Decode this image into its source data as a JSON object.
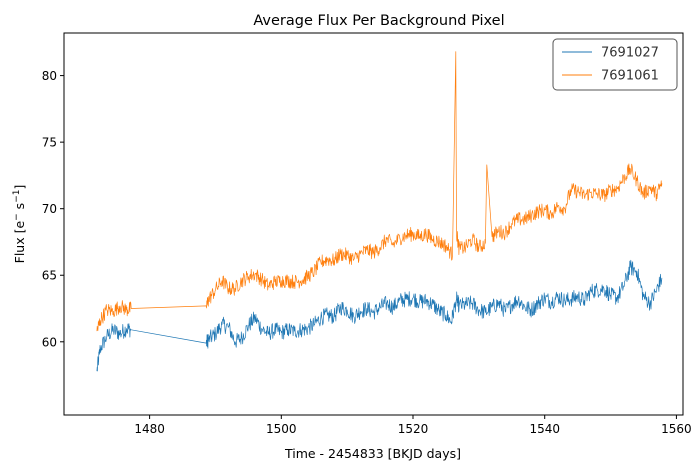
{
  "chart_data": {
    "type": "line",
    "title": "Average Flux Per Background Pixel",
    "xlabel": "Time - 2454833 [BKJD days]",
    "ylabel_main": "Flux [e",
    "ylabel_sup1": "−",
    "ylabel_mid": " s",
    "ylabel_sup2": "−1",
    "ylabel_end": "]",
    "xlim": [
      1467,
      1561
    ],
    "ylim": [
      54.5,
      83.2
    ],
    "xticks": [
      1480,
      1500,
      1520,
      1540,
      1560
    ],
    "yticks": [
      60,
      65,
      70,
      75,
      80
    ],
    "grid": false,
    "legend_position": "top-right",
    "series": [
      {
        "name": "7691027",
        "color": "#1f77b4",
        "noise": 0.6,
        "points": [
          [
            1472.0,
            57.8
          ],
          [
            1472.5,
            59.5
          ],
          [
            1473.5,
            60.4
          ],
          [
            1474.5,
            60.9
          ],
          [
            1475.5,
            60.6
          ],
          [
            1476.5,
            61.0
          ],
          [
            1477.2,
            60.9
          ],
          [
            1488.6,
            59.9
          ],
          [
            1489.0,
            60.2
          ],
          [
            1490.0,
            60.6
          ],
          [
            1491.0,
            61.3
          ],
          [
            1492.0,
            61.1
          ],
          [
            1493.0,
            60.0
          ],
          [
            1494.0,
            60.3
          ],
          [
            1495.0,
            61.2
          ],
          [
            1496.0,
            61.8
          ],
          [
            1497.0,
            61.0
          ],
          [
            1498.0,
            60.6
          ],
          [
            1499.0,
            60.9
          ],
          [
            1500.0,
            60.7
          ],
          [
            1501.0,
            60.9
          ],
          [
            1502.0,
            60.8
          ],
          [
            1503.0,
            60.9
          ],
          [
            1504.0,
            61.0
          ],
          [
            1505.0,
            61.3
          ],
          [
            1506.0,
            61.8
          ],
          [
            1507.0,
            62.0
          ],
          [
            1508.0,
            61.9
          ],
          [
            1509.0,
            62.6
          ],
          [
            1510.0,
            62.4
          ],
          [
            1511.0,
            61.9
          ],
          [
            1512.0,
            62.3
          ],
          [
            1513.0,
            62.5
          ],
          [
            1514.0,
            62.2
          ],
          [
            1515.0,
            62.6
          ],
          [
            1516.0,
            62.9
          ],
          [
            1517.0,
            62.6
          ],
          [
            1518.0,
            63.1
          ],
          [
            1519.0,
            63.2
          ],
          [
            1520.0,
            63.3
          ],
          [
            1521.0,
            63.0
          ],
          [
            1522.0,
            63.1
          ],
          [
            1523.0,
            62.8
          ],
          [
            1524.0,
            62.3
          ],
          [
            1525.0,
            62.0
          ],
          [
            1525.8,
            61.5
          ],
          [
            1526.6,
            63.2
          ],
          [
            1527.0,
            62.7
          ],
          [
            1528.0,
            62.8
          ],
          [
            1529.0,
            62.9
          ],
          [
            1530.0,
            62.4
          ],
          [
            1531.0,
            62.2
          ],
          [
            1532.0,
            62.6
          ],
          [
            1533.0,
            62.9
          ],
          [
            1534.0,
            62.3
          ],
          [
            1535.0,
            62.8
          ],
          [
            1536.0,
            63.2
          ],
          [
            1537.0,
            62.6
          ],
          [
            1538.0,
            62.4
          ],
          [
            1539.0,
            62.9
          ],
          [
            1540.0,
            63.3
          ],
          [
            1541.0,
            63.0
          ],
          [
            1542.0,
            63.4
          ],
          [
            1543.0,
            63.1
          ],
          [
            1544.0,
            63.2
          ],
          [
            1545.0,
            63.4
          ],
          [
            1546.0,
            63.1
          ],
          [
            1547.0,
            63.8
          ],
          [
            1548.0,
            63.9
          ],
          [
            1549.0,
            64.0
          ],
          [
            1550.0,
            63.5
          ],
          [
            1551.0,
            63.3
          ],
          [
            1552.0,
            64.2
          ],
          [
            1553.0,
            65.6
          ],
          [
            1554.0,
            65.3
          ],
          [
            1555.0,
            63.4
          ],
          [
            1556.0,
            62.9
          ],
          [
            1557.0,
            63.9
          ],
          [
            1557.8,
            64.8
          ]
        ]
      },
      {
        "name": "7691061",
        "color": "#ff7f0e",
        "noise": 0.55,
        "points": [
          [
            1472.0,
            60.8
          ],
          [
            1472.5,
            61.6
          ],
          [
            1473.5,
            62.4
          ],
          [
            1474.5,
            62.3
          ],
          [
            1475.5,
            62.7
          ],
          [
            1476.5,
            62.4
          ],
          [
            1477.2,
            62.5
          ],
          [
            1488.6,
            62.7
          ],
          [
            1489.0,
            63.2
          ],
          [
            1490.0,
            63.9
          ],
          [
            1491.0,
            64.6
          ],
          [
            1492.0,
            64.0
          ],
          [
            1493.0,
            64.0
          ],
          [
            1494.0,
            64.6
          ],
          [
            1495.0,
            64.9
          ],
          [
            1496.0,
            65.1
          ],
          [
            1497.0,
            64.7
          ],
          [
            1498.0,
            64.2
          ],
          [
            1499.0,
            64.5
          ],
          [
            1500.0,
            64.6
          ],
          [
            1501.0,
            64.6
          ],
          [
            1502.0,
            64.5
          ],
          [
            1503.0,
            64.6
          ],
          [
            1504.0,
            64.9
          ],
          [
            1505.0,
            65.3
          ],
          [
            1506.0,
            66.0
          ],
          [
            1507.0,
            66.2
          ],
          [
            1508.0,
            66.1
          ],
          [
            1509.0,
            66.6
          ],
          [
            1510.0,
            66.5
          ],
          [
            1511.0,
            66.2
          ],
          [
            1512.0,
            66.6
          ],
          [
            1513.0,
            66.9
          ],
          [
            1514.0,
            66.7
          ],
          [
            1515.0,
            67.1
          ],
          [
            1516.0,
            67.7
          ],
          [
            1517.0,
            67.3
          ],
          [
            1518.0,
            67.8
          ],
          [
            1519.0,
            68.0
          ],
          [
            1520.0,
            68.1
          ],
          [
            1521.0,
            67.9
          ],
          [
            1522.0,
            68.1
          ],
          [
            1523.0,
            67.7
          ],
          [
            1524.0,
            67.5
          ],
          [
            1525.0,
            67.2
          ],
          [
            1526.0,
            66.5
          ],
          [
            1526.6,
            68.2
          ],
          [
            1527.0,
            67.0
          ],
          [
            1528.0,
            67.1
          ],
          [
            1529.0,
            67.7
          ],
          [
            1530.0,
            67.1
          ],
          [
            1531.0,
            67.4
          ],
          [
            1532.0,
            67.9
          ],
          [
            1533.0,
            68.3
          ],
          [
            1534.0,
            68.2
          ],
          [
            1535.0,
            68.9
          ],
          [
            1536.0,
            69.2
          ],
          [
            1537.0,
            69.2
          ],
          [
            1538.0,
            69.5
          ],
          [
            1539.0,
            69.8
          ],
          [
            1540.0,
            69.9
          ],
          [
            1541.0,
            69.6
          ],
          [
            1542.0,
            70.2
          ],
          [
            1543.0,
            70.0
          ],
          [
            1544.0,
            71.4
          ],
          [
            1545.0,
            71.3
          ],
          [
            1546.0,
            71.0
          ],
          [
            1547.0,
            71.2
          ],
          [
            1548.0,
            71.1
          ],
          [
            1549.0,
            71.0
          ],
          [
            1550.0,
            71.4
          ],
          [
            1551.0,
            71.5
          ],
          [
            1552.0,
            72.3
          ],
          [
            1553.0,
            73.0
          ],
          [
            1554.0,
            72.1
          ],
          [
            1555.0,
            71.1
          ],
          [
            1556.0,
            71.6
          ],
          [
            1557.0,
            71.1
          ],
          [
            1557.8,
            71.9
          ]
        ],
        "spikes": [
          [
            1526.5,
            81.8
          ],
          [
            1531.2,
            73.3
          ]
        ]
      }
    ]
  }
}
